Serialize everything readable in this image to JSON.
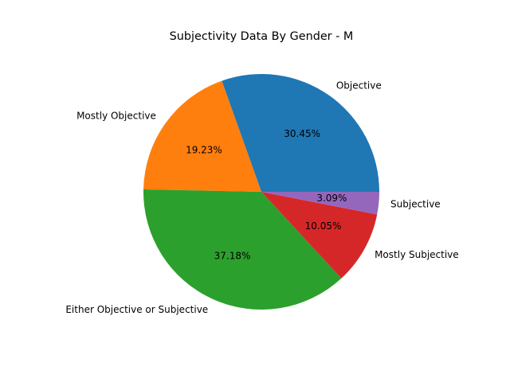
{
  "chart_data": {
    "type": "pie",
    "title": "Subjectivity Data By Gender - M",
    "start_angle_deg": 0,
    "direction": "counterclockwise",
    "slices": [
      {
        "label": "Objective",
        "value": 30.45,
        "pct_label": "30.45%",
        "color": "#1f77b4"
      },
      {
        "label": "Mostly Objective",
        "value": 19.23,
        "pct_label": "19.23%",
        "color": "#ff7f0e"
      },
      {
        "label": "Either Objective or Subjective",
        "value": 37.18,
        "pct_label": "37.18%",
        "color": "#2ca02c"
      },
      {
        "label": "Mostly Subjective",
        "value": 10.05,
        "pct_label": "10.05%",
        "color": "#d62728"
      },
      {
        "label": "Subjective",
        "value": 3.09,
        "pct_label": "3.09%",
        "color": "#9467bd"
      }
    ]
  }
}
